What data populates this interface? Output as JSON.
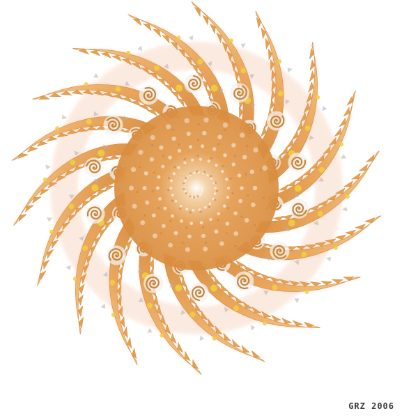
{
  "artwork": {
    "signature": "GRZ 2006",
    "colors": {
      "background": "#ffffff",
      "arm_fill": "#e8a050",
      "arm_light": "#f2c07a",
      "arm_dark": "#c9853a",
      "glow": "#f6c6a8",
      "highlight": "#f0d040",
      "shadow_gray": "#b0b0b0"
    },
    "arms": 18
  }
}
